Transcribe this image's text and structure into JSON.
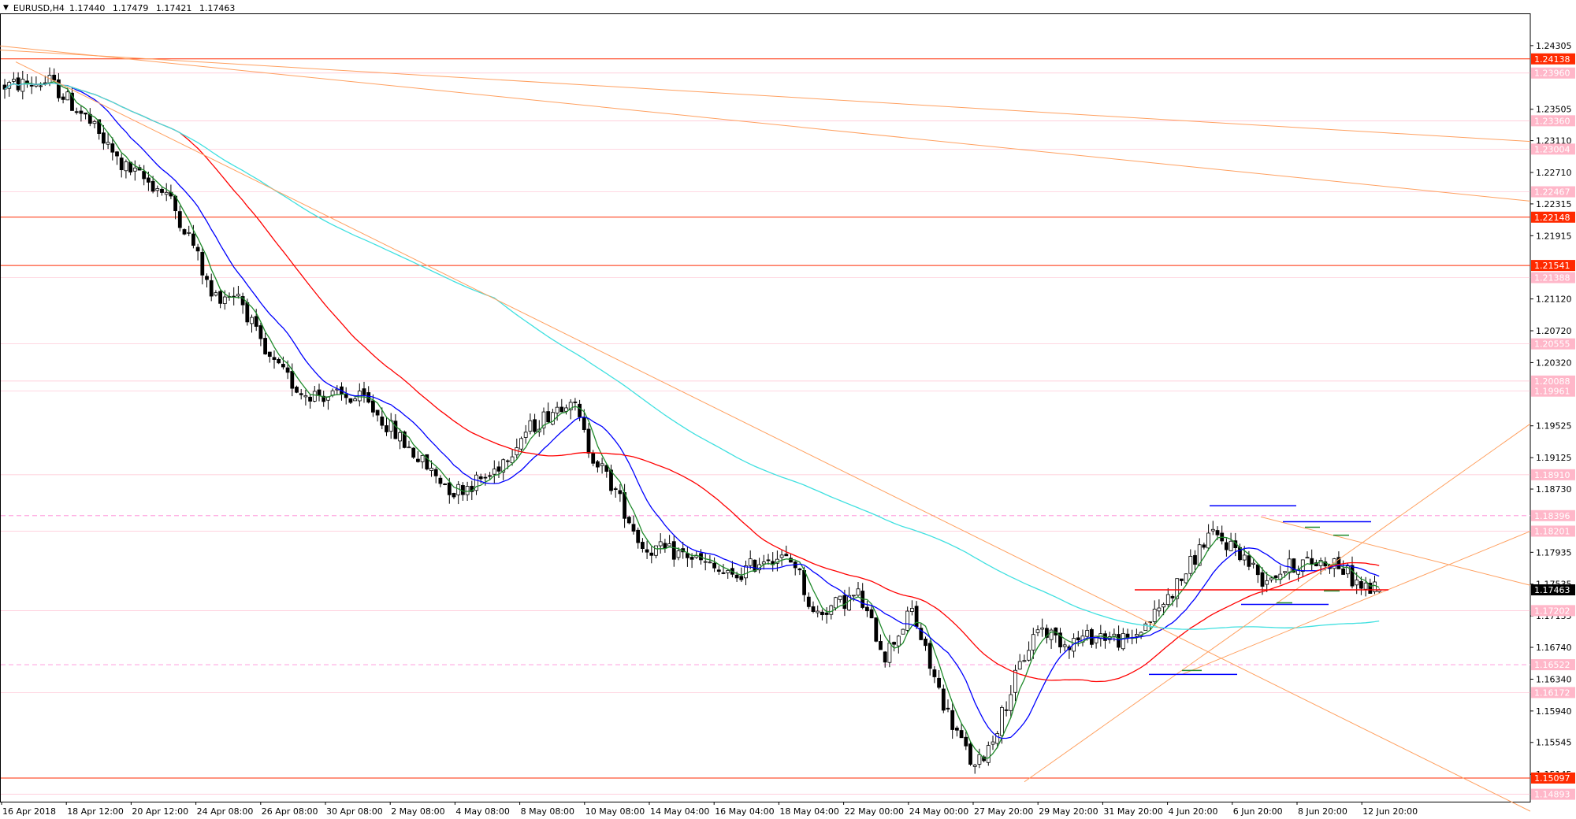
{
  "header": {
    "symbol": "EURUSD,H4",
    "open": "1.17440",
    "high": "1.17479",
    "low": "1.17421",
    "close": "1.17463"
  },
  "chart_data": {
    "type": "candlestick",
    "symbol": "EURUSD",
    "timeframe": "H4",
    "ylim": [
      1.148,
      1.247
    ],
    "y_ticks": [
      "1.24305",
      "1.23505",
      "1.23110",
      "1.22710",
      "1.22315",
      "1.21915",
      "1.21120",
      "1.20720",
      "1.20320",
      "1.19525",
      "1.19125",
      "1.18730",
      "1.17935",
      "1.17535",
      "1.17135",
      "1.16740",
      "1.16340",
      "1.15940",
      "1.15545",
      "1.15145"
    ],
    "x_ticks": [
      "16 Apr 2018",
      "18 Apr 12:00",
      "20 Apr 12:00",
      "24 Apr 08:00",
      "26 Apr 08:00",
      "30 Apr 08:00",
      "2 May 08:00",
      "4 May 08:00",
      "8 May 08:00",
      "10 May 08:00",
      "14 May 04:00",
      "16 May 04:00",
      "18 May 04:00",
      "22 May 00:00",
      "24 May 00:00",
      "27 May 20:00",
      "29 May 20:00",
      "31 May 20:00",
      "4 Jun 20:00",
      "6 Jun 20:00",
      "8 Jun 20:00",
      "12 Jun 20:00"
    ],
    "current_price": "1.17463",
    "levels": [
      {
        "value": 1.24138,
        "label": "1.24138",
        "style": "solid",
        "color": "#ff2a00"
      },
      {
        "value": 1.2396,
        "label": "1.23960",
        "style": "faint",
        "color": "#ffa8c0"
      },
      {
        "value": 1.2336,
        "label": "1.23360",
        "style": "faint",
        "color": "#ffa8c0"
      },
      {
        "value": 1.23004,
        "label": "1.23004",
        "style": "faint",
        "color": "#ffa8c0"
      },
      {
        "value": 1.22467,
        "label": "1.22467",
        "style": "faint",
        "color": "#ffa8c0"
      },
      {
        "value": 1.22148,
        "label": "1.22148",
        "style": "solid",
        "color": "#ff2a00"
      },
      {
        "value": 1.21541,
        "label": "1.21541",
        "style": "solid",
        "color": "#ff2a00"
      },
      {
        "value": 1.21388,
        "label": "1.21388",
        "style": "faint",
        "color": "#ffa8c0"
      },
      {
        "value": 1.20555,
        "label": "1.20555",
        "style": "faint",
        "color": "#ffa8c0"
      },
      {
        "value": 1.20088,
        "label": "1.20088",
        "style": "faint",
        "color": "#ffa8c0"
      },
      {
        "value": 1.19961,
        "label": "1.19961",
        "style": "faint",
        "color": "#ffa8c0"
      },
      {
        "value": 1.1891,
        "label": "1.18910",
        "style": "faint",
        "color": "#ffa8c0"
      },
      {
        "value": 1.18396,
        "label": "1.18396",
        "style": "dashed",
        "color": "#ffa8e0"
      },
      {
        "value": 1.18201,
        "label": "1.18201",
        "style": "faint",
        "color": "#ffa8c0"
      },
      {
        "value": 1.17202,
        "label": "1.17202",
        "style": "faint",
        "color": "#ffa8c0"
      },
      {
        "value": 1.16522,
        "label": "1.16522",
        "style": "dashed",
        "color": "#ffa8e0"
      },
      {
        "value": 1.16172,
        "label": "1.16172",
        "style": "faint",
        "color": "#ffa8c0"
      },
      {
        "value": 1.15097,
        "label": "1.15097",
        "style": "solid",
        "color": "#ff2a00"
      },
      {
        "value": 1.14893,
        "label": "1.14893",
        "style": "faint",
        "color": "#ffa8c0"
      }
    ],
    "series": [
      {
        "name": "",
        "color": "#1f8a2a",
        "kind": "fast-ma"
      },
      {
        "name": "",
        "color": "#0000ff",
        "kind": "mid-ma"
      },
      {
        "name": "",
        "color": "#ff0000",
        "kind": "slow-ma"
      },
      {
        "name": "",
        "color": "#40e0e0",
        "kind": "long-ma"
      }
    ],
    "grid": false
  }
}
